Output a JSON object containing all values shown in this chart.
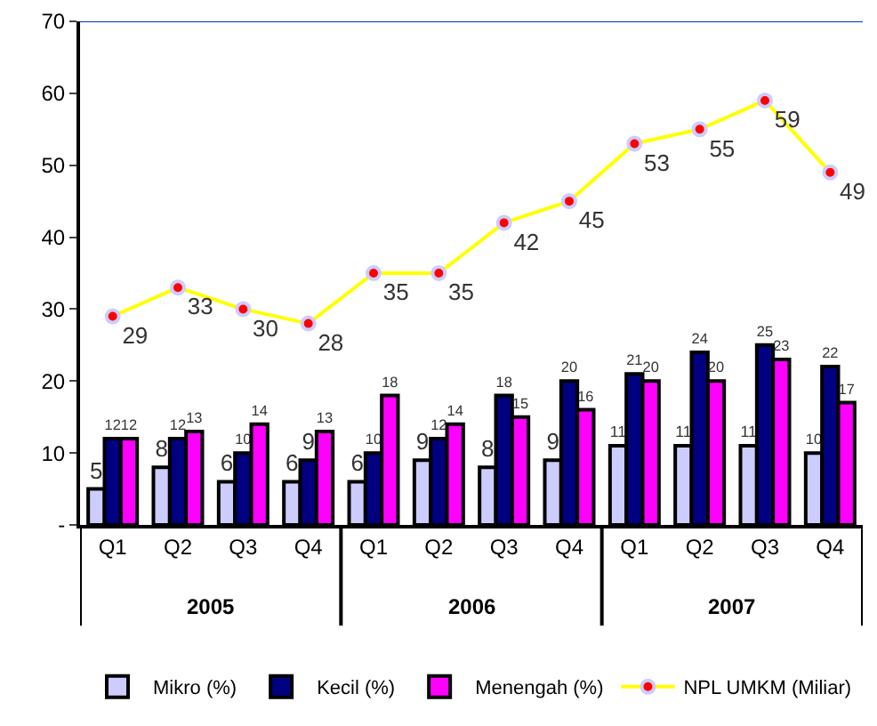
{
  "chart_data": {
    "type": "bar",
    "categories": [
      "Q1",
      "Q2",
      "Q3",
      "Q4",
      "Q1",
      "Q2",
      "Q3",
      "Q4",
      "Q1",
      "Q2",
      "Q3",
      "Q4"
    ],
    "annotations": [
      "2005",
      "2006",
      "2007"
    ],
    "series": [
      {
        "name": "Mikro (%)",
        "color": "#ccccff",
        "values": [
          5,
          8,
          6,
          6,
          6,
          9,
          8,
          9,
          11,
          11,
          11,
          10
        ]
      },
      {
        "name": "Kecil (%)",
        "color": "#000080",
        "values": [
          12,
          12,
          10,
          9,
          10,
          12,
          18,
          20,
          21,
          24,
          25,
          22
        ]
      },
      {
        "name": "Menengah (%)",
        "color": "#ff00ff",
        "values": [
          12,
          13,
          14,
          13,
          18,
          14,
          15,
          16,
          20,
          20,
          23,
          17
        ]
      },
      {
        "name": "NPL UMKM (Miliar)",
        "type": "line",
        "color": "#ffff00",
        "marker": "circle",
        "values": [
          29,
          33,
          30,
          28,
          35,
          35,
          42,
          45,
          53,
          55,
          59,
          49
        ]
      }
    ],
    "ylim": [
      0,
      70
    ],
    "yticks": [
      {
        "value": 0,
        "label": "-"
      },
      10,
      20,
      30,
      40,
      50,
      60,
      70
    ],
    "data_labels": true,
    "grid": false,
    "legend": "bottom"
  }
}
